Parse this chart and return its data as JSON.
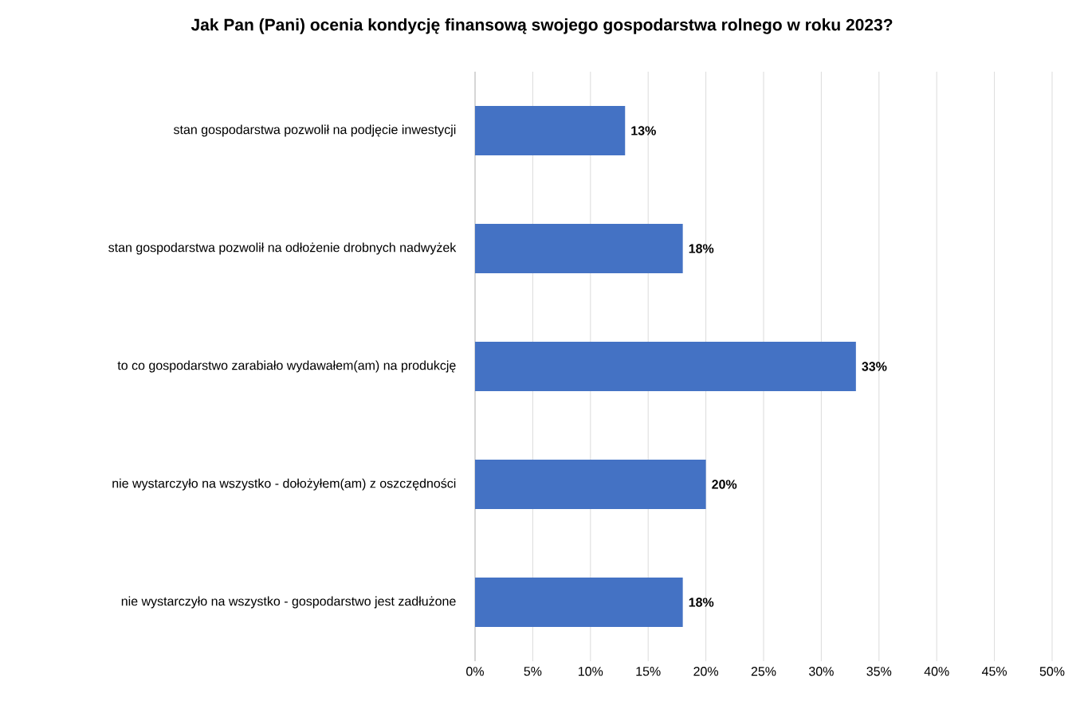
{
  "chart_data": {
    "type": "bar",
    "orientation": "horizontal",
    "title": "Jak Pan (Pani) ocenia kondycję finansową swojego gospodarstwa rolnego w roku 2023?",
    "categories": [
      "stan gospodarstwa pozwolił na podjęcie inwestycji",
      "stan gospodarstwa pozwolił na odłożenie drobnych nadwyżek",
      "to co gospodarstwo zarabiało wydawałem(am) na produkcję",
      "nie wystarczyło na wszystko - dołożyłem(am) z oszczędności",
      "nie wystarczyło na wszystko - gospodarstwo jest zadłużone"
    ],
    "values": [
      13,
      18,
      33,
      20,
      18
    ],
    "value_labels": [
      "13%",
      "18%",
      "33%",
      "20%",
      "18%"
    ],
    "color": "#4472c4",
    "xlim": [
      0,
      50
    ],
    "xticks": [
      {
        "value": 0,
        "label": "0%"
      },
      {
        "value": 5,
        "label": "5%"
      },
      {
        "value": 10,
        "label": "10%"
      },
      {
        "value": 15,
        "label": "15%"
      },
      {
        "value": 20,
        "label": "20%"
      },
      {
        "value": 25,
        "label": "25%"
      },
      {
        "value": 30,
        "label": "30%"
      },
      {
        "value": 35,
        "label": "35%"
      },
      {
        "value": 40,
        "label": "40%"
      },
      {
        "value": 45,
        "label": "45%"
      },
      {
        "value": 50,
        "label": "50%"
      }
    ],
    "grid": "x"
  }
}
